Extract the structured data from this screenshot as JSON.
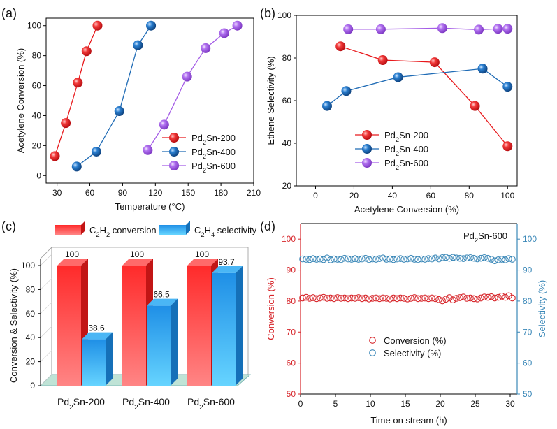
{
  "chart_data": [
    {
      "panel": "(a)",
      "type": "scatter",
      "xlabel": "Temperature (°C)",
      "ylabel": "Acetylene Conversion (%)",
      "xlim": [
        20,
        210
      ],
      "ylim": [
        -5,
        105
      ],
      "xticks": [
        30,
        60,
        90,
        120,
        150,
        180,
        210
      ],
      "yticks": [
        0,
        20,
        40,
        60,
        80,
        100
      ],
      "legend_position": "bottom-right",
      "series": [
        {
          "name": "Pd2Sn-200",
          "color": "#e8191c",
          "x": [
            28,
            38,
            49,
            57,
            67
          ],
          "y": [
            13,
            35,
            62,
            83,
            100
          ]
        },
        {
          "name": "Pd2Sn-400",
          "color": "#1f6bb5",
          "x": [
            48,
            66,
            87,
            104,
            116
          ],
          "y": [
            6,
            16,
            43,
            87,
            100
          ]
        },
        {
          "name": "Pd2Sn-600",
          "color": "#a45ce6",
          "x": [
            113,
            128,
            149,
            166,
            183,
            195
          ],
          "y": [
            17,
            34,
            66,
            85,
            95,
            100
          ]
        }
      ]
    },
    {
      "panel": "(b)",
      "type": "line",
      "xlabel": "Acetylene Conversion (%)",
      "ylabel": "Ethene Selectivity (%)",
      "xlim": [
        -10,
        105
      ],
      "ylim": [
        20,
        100
      ],
      "xticks": [
        0,
        20,
        40,
        60,
        80,
        100
      ],
      "yticks": [
        20,
        40,
        60,
        80,
        100
      ],
      "legend_position": "bottom-right",
      "series": [
        {
          "name": "Pd2Sn-200",
          "color": "#e8191c",
          "x": [
            13,
            35,
            62,
            83,
            100
          ],
          "y": [
            85.5,
            79,
            78,
            57.5,
            38.6
          ]
        },
        {
          "name": "Pd2Sn-400",
          "color": "#1f6bb5",
          "x": [
            6,
            16,
            43,
            87,
            100
          ],
          "y": [
            57.5,
            64.5,
            71,
            75,
            66.5
          ]
        },
        {
          "name": "Pd2Sn-600",
          "color": "#a45ce6",
          "x": [
            17,
            34,
            66,
            85,
            95,
            100
          ],
          "y": [
            93.5,
            93.5,
            94,
            93.3,
            93.7,
            93.7
          ]
        }
      ]
    },
    {
      "panel": "(c)",
      "type": "bar",
      "ylabel": "Conversion & Selectivity (%)",
      "ylim": [
        0,
        100
      ],
      "yticks": [
        0,
        20,
        40,
        60,
        80,
        100
      ],
      "categories": [
        "Pd2Sn-200",
        "Pd2Sn-400",
        "Pd2Sn-600"
      ],
      "legend_position": "top",
      "series": [
        {
          "name": "C2H2 conversion",
          "color": "#ff3b3b",
          "values": [
            100,
            100,
            100
          ],
          "labels": [
            "100",
            "100",
            "100"
          ]
        },
        {
          "name": "C2H4 selectivity",
          "color": "#2fa2ee",
          "values": [
            38.6,
            66.5,
            93.7
          ],
          "labels": [
            "38.6",
            "66.5",
            "93.7"
          ]
        }
      ]
    },
    {
      "panel": "(d)",
      "type": "scatter",
      "annotation": "Pd2Sn-600",
      "xlabel": "Time on stream (h)",
      "ylabel_left": "Conversion (%)",
      "ylabel_right": "Selectivity (%)",
      "xlim": [
        0,
        31
      ],
      "ylim": [
        50,
        105
      ],
      "xticks": [
        0,
        5,
        10,
        15,
        20,
        25,
        30
      ],
      "yticks": [
        50,
        60,
        70,
        80,
        90,
        100
      ],
      "legend_position": "center",
      "series": [
        {
          "name": "Conversion (%)",
          "color": "#d7262b",
          "axis": "left",
          "x": [
            0.3,
            0.8,
            1.3,
            1.8,
            2.3,
            2.8,
            3.3,
            3.8,
            4.3,
            4.8,
            5.3,
            5.8,
            6.3,
            6.8,
            7.3,
            7.8,
            8.3,
            8.8,
            9.3,
            9.8,
            10.3,
            10.8,
            11.3,
            11.8,
            12.3,
            12.8,
            13.3,
            13.8,
            14.3,
            14.8,
            15.3,
            15.8,
            16.3,
            16.8,
            17.3,
            17.8,
            18.3,
            18.8,
            19.3,
            19.8,
            20.3,
            20.8,
            21.3,
            21.8,
            22.3,
            22.8,
            23.3,
            23.8,
            24.3,
            24.8,
            25.3,
            25.8,
            26.3,
            26.8,
            27.3,
            27.8,
            28.3,
            28.8,
            29.3,
            29.8,
            30.3
          ],
          "y": [
            81,
            81.2,
            80.9,
            81.1,
            80.8,
            81,
            81.2,
            80.9,
            81,
            80.8,
            81.1,
            80.9,
            81,
            80.8,
            81,
            80.9,
            81.1,
            80.8,
            81,
            80.7,
            80.9,
            81,
            80.8,
            81,
            80.9,
            80.7,
            81,
            80.8,
            81,
            80.9,
            80.7,
            80.9,
            81.1,
            80.8,
            80.9,
            81,
            80.8,
            81,
            80.8,
            80.5,
            80.1,
            80.6,
            81.1,
            80.4,
            80.9,
            81.1,
            81.3,
            80.9,
            81,
            80.8,
            80.7,
            81,
            81.3,
            81.2,
            81.4,
            81,
            81.2,
            81.6,
            81.2,
            81.7,
            81
          ]
        },
        {
          "name": "Selectivity (%)",
          "color": "#3b88b8",
          "axis": "right",
          "x": [
            0.3,
            0.8,
            1.3,
            1.8,
            2.3,
            2.8,
            3.3,
            3.8,
            4.3,
            4.8,
            5.3,
            5.8,
            6.3,
            6.8,
            7.3,
            7.8,
            8.3,
            8.8,
            9.3,
            9.8,
            10.3,
            10.8,
            11.3,
            11.8,
            12.3,
            12.8,
            13.3,
            13.8,
            14.3,
            14.8,
            15.3,
            15.8,
            16.3,
            16.8,
            17.3,
            17.8,
            18.3,
            18.8,
            19.3,
            19.8,
            20.3,
            20.8,
            21.3,
            21.8,
            22.3,
            22.8,
            23.3,
            23.8,
            24.3,
            24.8,
            25.3,
            25.8,
            26.3,
            26.8,
            27.3,
            27.8,
            28.3,
            28.8,
            29.3,
            29.8,
            30.3
          ],
          "y": [
            93.6,
            93.5,
            93.4,
            93.7,
            93.5,
            93.6,
            93.4,
            93.9,
            93.3,
            93.6,
            93.5,
            93.4,
            93.8,
            93.6,
            93.5,
            93.7,
            93.5,
            93.6,
            93.8,
            93.4,
            93.6,
            93.5,
            93.7,
            93.9,
            93.5,
            93.6,
            93.4,
            93.6,
            93.7,
            93.5,
            93.6,
            93.8,
            93.5,
            93.4,
            93.6,
            93.5,
            93.7,
            93.6,
            93.9,
            93.6,
            94,
            94.1,
            93.8,
            94.1,
            93.9,
            93.8,
            93.7,
            93.9,
            94,
            93.8,
            93.6,
            93.8,
            94,
            93.8,
            93.5,
            93,
            93.3,
            93.5,
            93.3,
            93.7,
            93.5
          ]
        }
      ]
    }
  ]
}
